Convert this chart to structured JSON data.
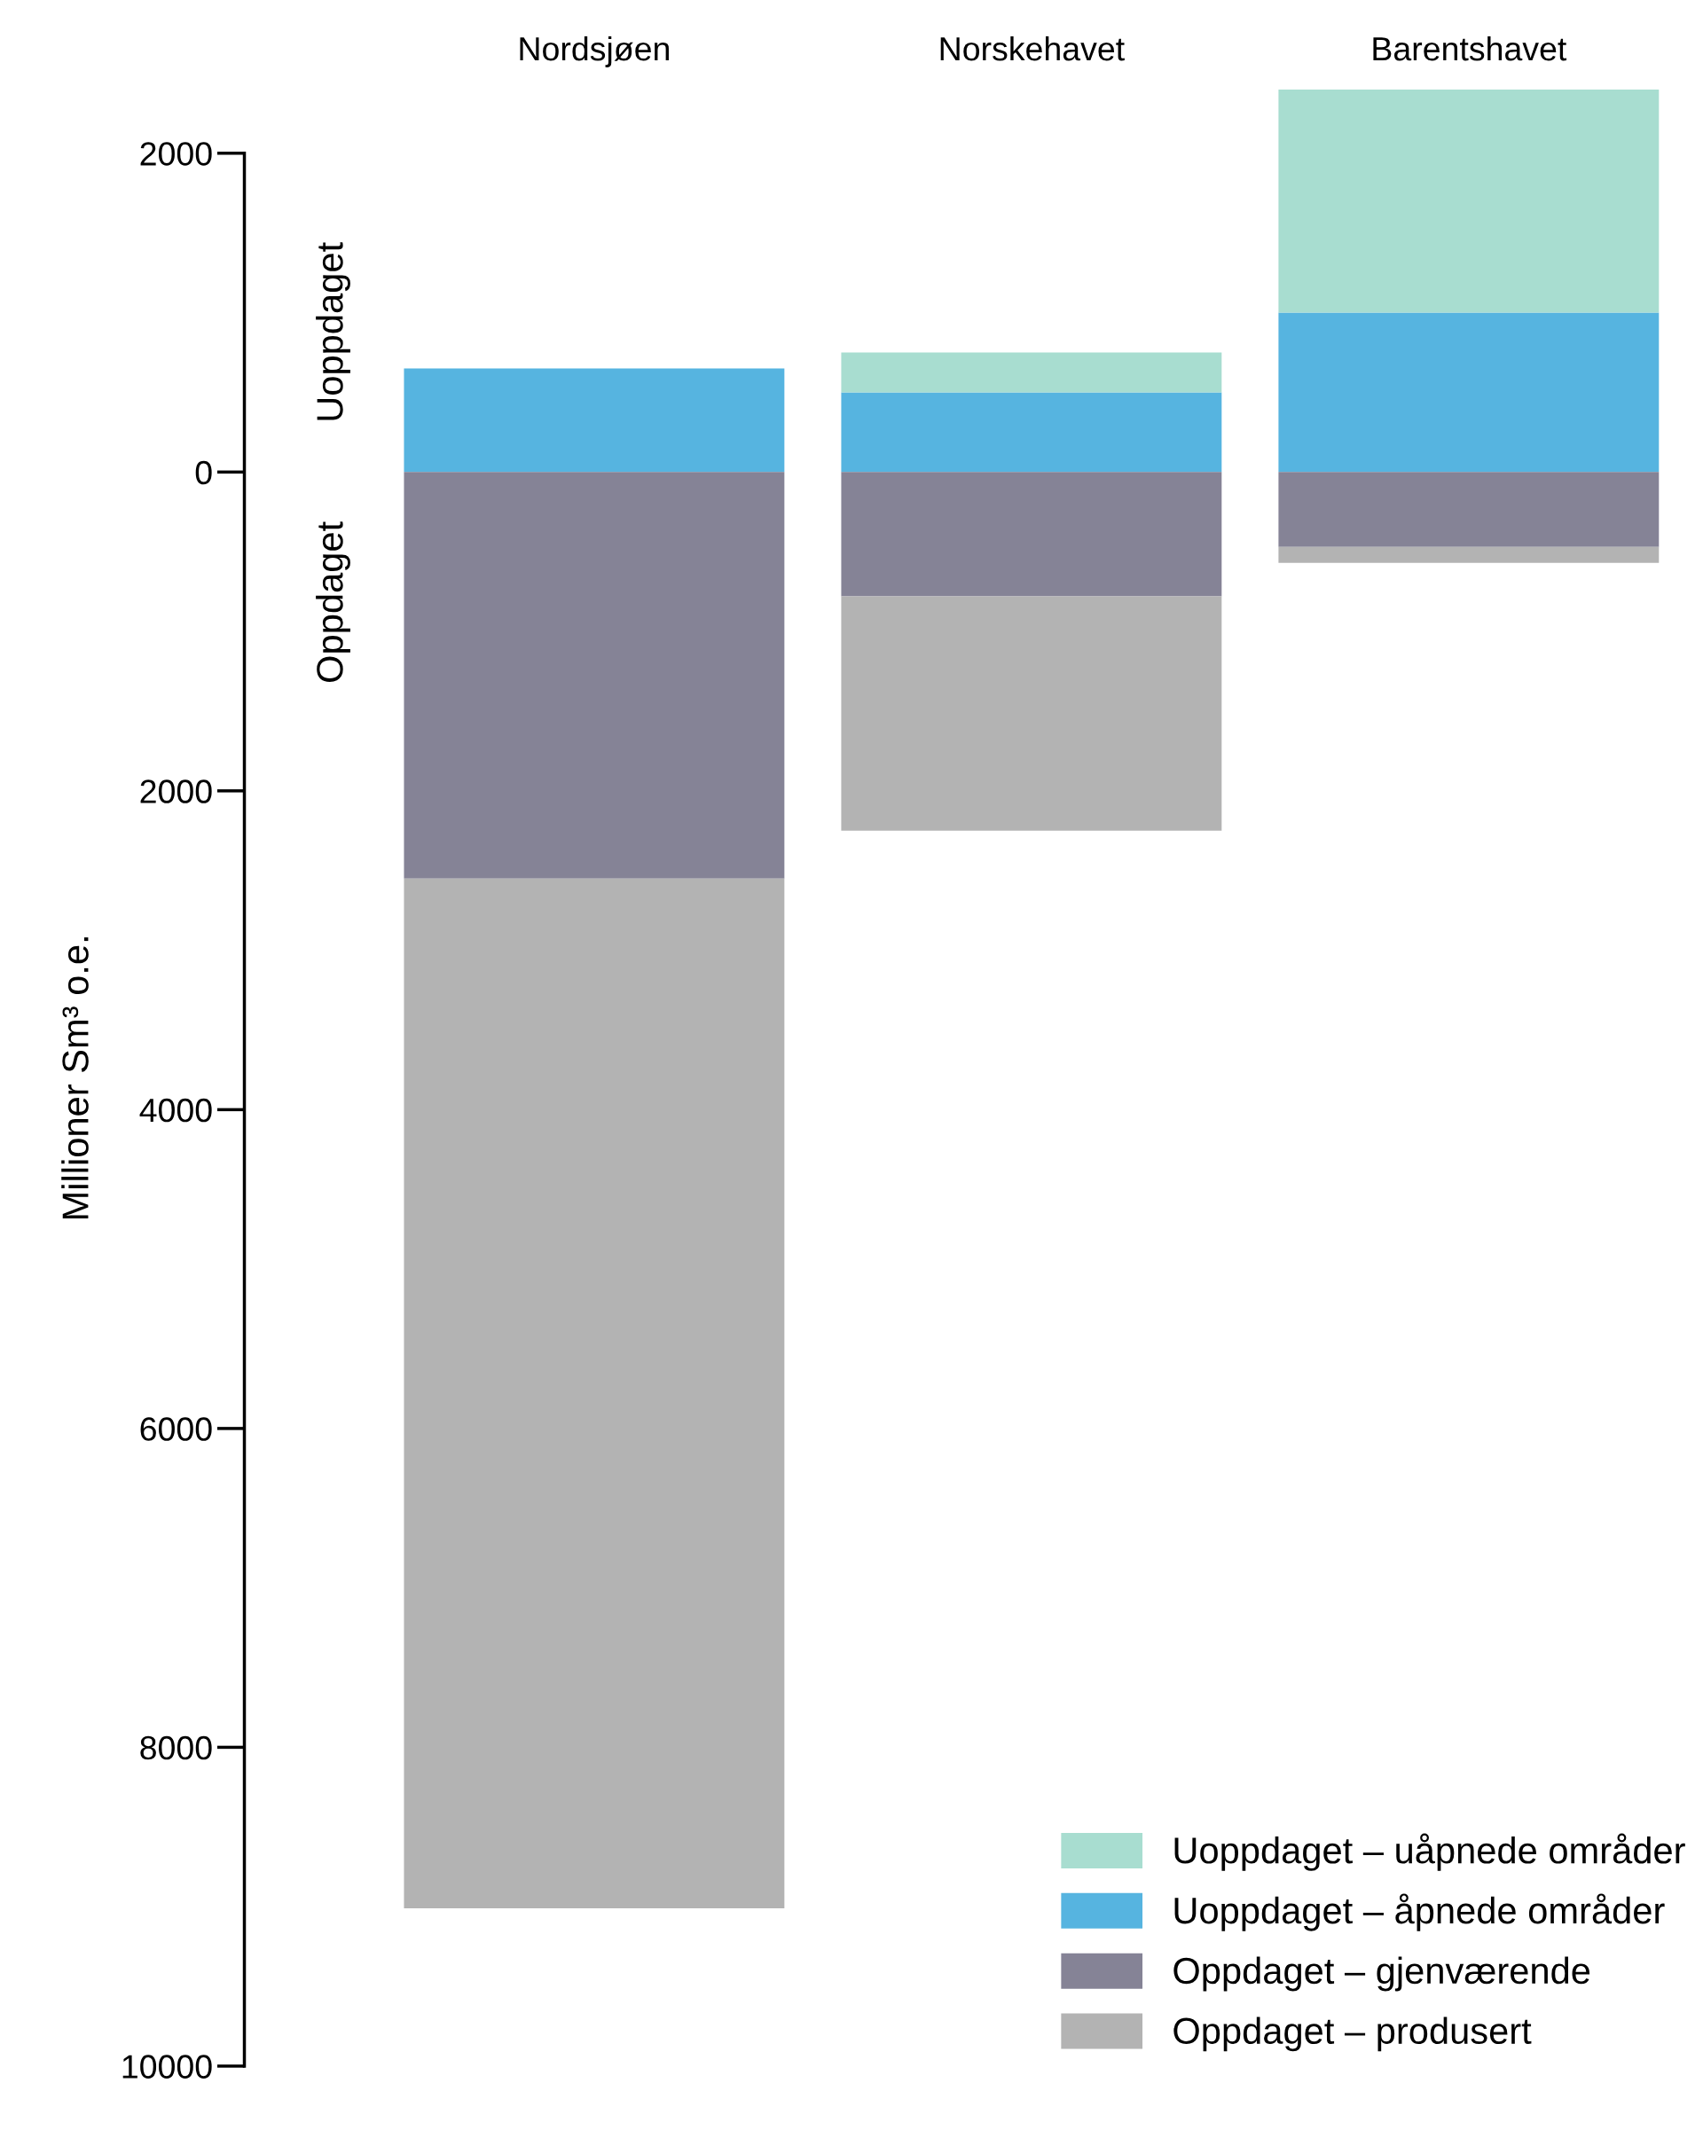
{
  "chart_data": {
    "type": "bar",
    "stacked": true,
    "ylabel": "Millioner Sm³ o.e.",
    "categories": [
      "Nordsjøen",
      "Norskehavet",
      "Barentshavet"
    ],
    "series": [
      {
        "name": "Uoppdaget – åpnede områder",
        "color": "#56b4e0",
        "values": [
          650,
          500,
          1000
        ]
      },
      {
        "name": "Uoppdaget – uåpnede områder",
        "color": "#a8ddd0",
        "values": [
          null,
          250,
          1400
        ]
      },
      {
        "name": "Oppdaget – gjenværende",
        "color": "#858396",
        "values": [
          -2550,
          -780,
          -470
        ]
      },
      {
        "name": "Oppdaget – produsert",
        "color": "#b3b3b3",
        "values": [
          -6460,
          -1470,
          -100
        ]
      }
    ],
    "ylim": [
      -10000,
      2400
    ],
    "yticks": [
      2000,
      0,
      {
        "value": -2000,
        "label": "2000"
      },
      {
        "value": -4000,
        "label": "4000"
      },
      {
        "value": -6000,
        "label": "6000"
      },
      {
        "value": -8000,
        "label": "8000"
      },
      {
        "value": -10000,
        "label": "10000"
      }
    ],
    "annotations": [
      "Uoppdaget",
      "Oppdaget"
    ],
    "legend": "bottom right",
    "grid": false
  }
}
